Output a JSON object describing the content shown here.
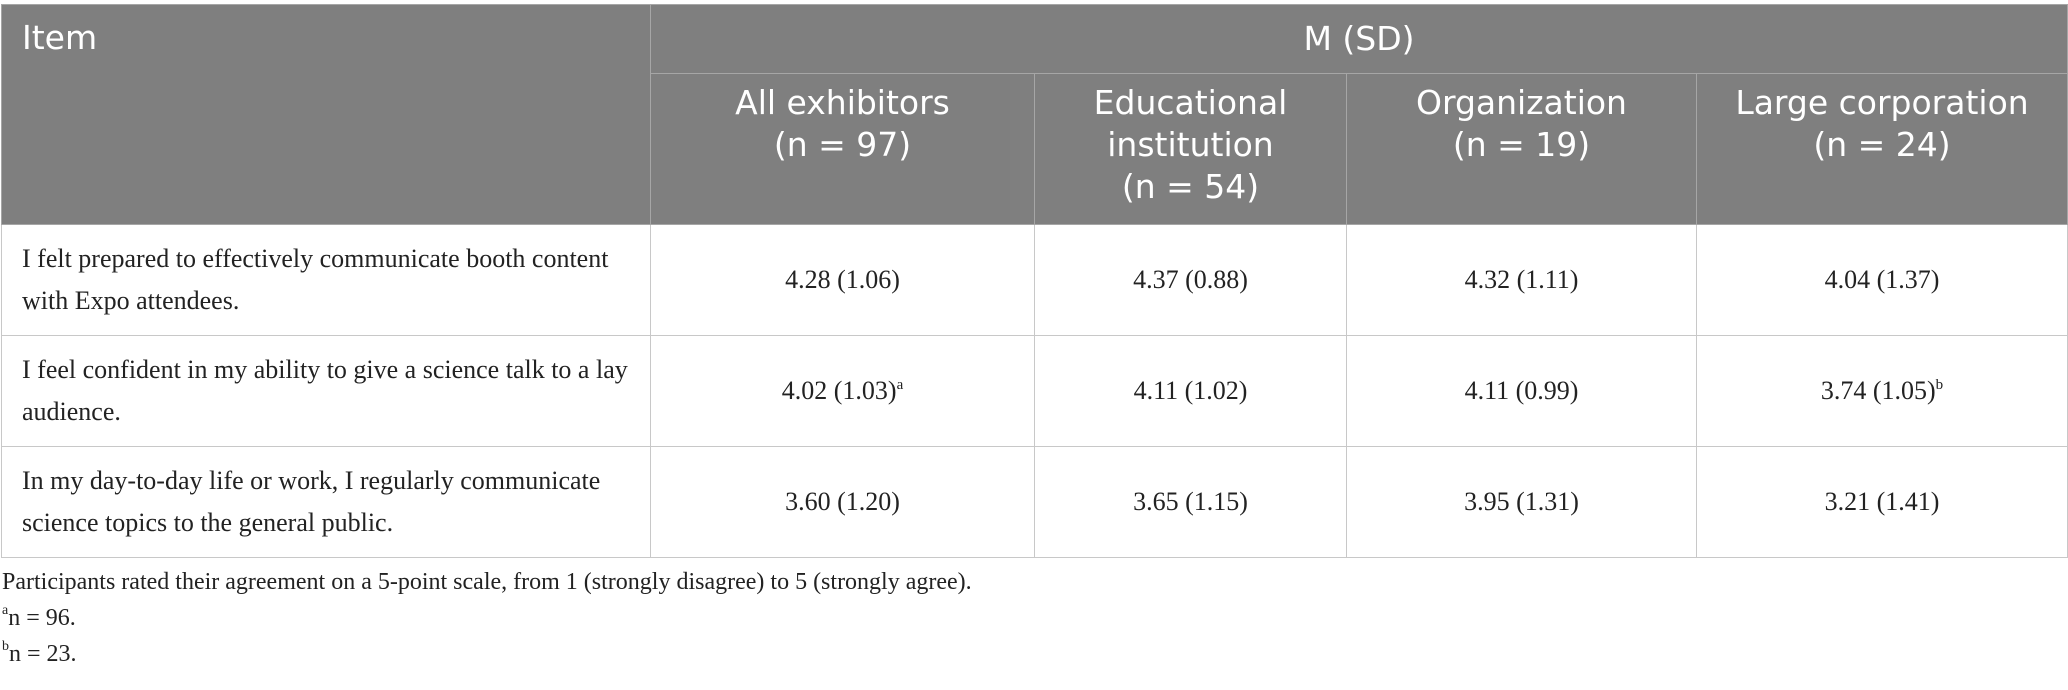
{
  "table": {
    "item_header": "Item",
    "group_header": "M (SD)",
    "columns": [
      {
        "name": "All exhibitors",
        "n": "(n = 97)"
      },
      {
        "name": "Educational institution",
        "n": "(n = 54)"
      },
      {
        "name": "Organization",
        "n": "(n = 19)"
      },
      {
        "name": "Large corporation",
        "n": "(n = 24)"
      }
    ],
    "rows": [
      {
        "item": "I felt prepared to effectively communicate booth content with Expo attendees.",
        "cells": [
          {
            "value": "4.28 (1.06)"
          },
          {
            "value": "4.37 (0.88)"
          },
          {
            "value": "4.32 (1.11)"
          },
          {
            "value": "4.04 (1.37)"
          }
        ]
      },
      {
        "item": "I feel confident in my ability to give a science talk to a lay audience.",
        "cells": [
          {
            "value": "4.02 (1.03)",
            "note": "a"
          },
          {
            "value": "4.11 (1.02)"
          },
          {
            "value": "4.11 (0.99)"
          },
          {
            "value": "3.74 (1.05)",
            "note": "b"
          }
        ]
      },
      {
        "item": "In my day-to-day life or work, I regularly communicate science topics to the general public.",
        "cells": [
          {
            "value": "3.60 (1.20)"
          },
          {
            "value": "3.65 (1.15)"
          },
          {
            "value": "3.95 (1.31)"
          },
          {
            "value": "3.21 (1.41)"
          }
        ]
      }
    ]
  },
  "notes": {
    "text": "Participants rated their agreement on a 5-point scale, from 1 (strongly disagree) to 5 (strongly agree).",
    "footnotes": [
      {
        "mark": "a",
        "text": "n = 96."
      },
      {
        "mark": "b",
        "text": "n = 23."
      }
    ]
  }
}
